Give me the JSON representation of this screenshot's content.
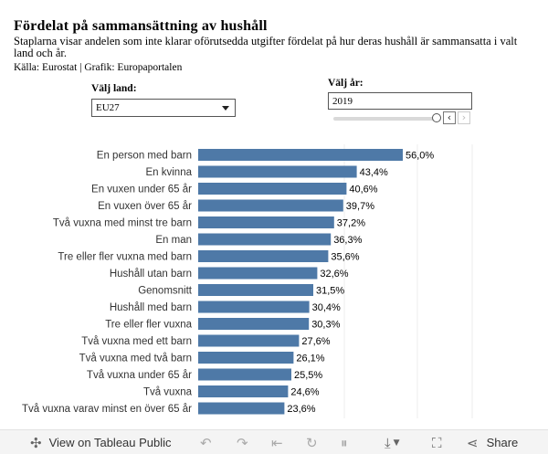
{
  "header": {
    "title": "Fördelat på sammansättning av hushåll",
    "subtitle": "Staplarna visar andelen som inte klarar oförutsedda utgifter fördelat på hur deras hushåll är sammansatta i valt land och år.",
    "source": "Källa: Eurostat | Grafik: Europaportalen"
  },
  "controls": {
    "country_label": "Välj land:",
    "country_value": "EU27",
    "year_label": "Välj år:",
    "year_value": "2019",
    "year_slider_fraction": 1.0
  },
  "chart_data": {
    "type": "bar",
    "orientation": "horizontal",
    "categories": [
      "En person med barn",
      "En kvinna",
      "En vuxen under 65 år",
      "En vuxen över 65 år",
      "Två vuxna med minst tre barn",
      "En man",
      "Tre eller fler vuxna med barn",
      "Hushåll utan barn",
      "Genomsnitt",
      "Hushåll med barn",
      "Tre eller fler vuxna",
      "Två vuxna med ett barn",
      "Två vuxna med två barn",
      "Två vuxna under 65 år",
      "Två vuxna",
      "Två vuxna varav minst en över 65 år"
    ],
    "values": [
      56.0,
      43.4,
      40.6,
      39.7,
      37.2,
      36.3,
      35.6,
      32.6,
      31.5,
      30.4,
      30.3,
      27.6,
      26.1,
      25.5,
      24.6,
      23.6
    ],
    "value_labels": [
      "56,0%",
      "43,4%",
      "40,6%",
      "39,7%",
      "37,2%",
      "36,3%",
      "35,6%",
      "32,6%",
      "31,5%",
      "30,4%",
      "30,3%",
      "27,6%",
      "26,1%",
      "25,5%",
      "24,6%",
      "23,6%"
    ],
    "xlim": [
      0,
      80
    ],
    "grid": true,
    "bar_color": "#4e79a7"
  },
  "toolbar": {
    "view_label": "View on Tableau Public",
    "share_label": "Share"
  }
}
